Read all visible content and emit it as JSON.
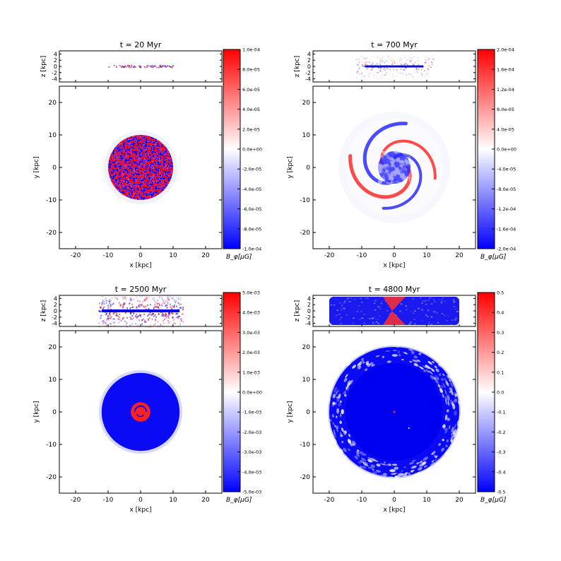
{
  "figure": {
    "panels": [
      {
        "title": "t = 20 Myr",
        "colorbar": {
          "label": "B_φ[μG]",
          "ticks": [
            "1.0e-04",
            "8.0e-05",
            "6.0e-05",
            "4.0e-05",
            "2.0e-05",
            "0.0e+00",
            "-2.0e-05",
            "-4.0e-05",
            "-6.0e-05",
            "-8.0e-05",
            "-1.0e-04"
          ]
        }
      },
      {
        "title": "t = 700 Myr",
        "colorbar": {
          "label": "B_φ[μG]",
          "ticks": [
            "2.0e-04",
            "1.6e-04",
            "1.2e-04",
            "8.0e-05",
            "4.0e-05",
            "0.0e+00",
            "-4.0e-05",
            "-8.0e-05",
            "-1.2e-04",
            "-1.6e-04",
            "-2.0e-04"
          ]
        }
      },
      {
        "title": "t = 2500 Myr",
        "colorbar": {
          "label": "B_φ[μG]",
          "ticks": [
            "5.0e-03",
            "4.0e-03",
            "3.0e-03",
            "2.0e-03",
            "1.0e-03",
            "0.0e+00",
            "-1.0e-03",
            "-2.0e-03",
            "-3.0e-03",
            "-4.0e-03",
            "-5.0e-03"
          ]
        }
      },
      {
        "title": "t = 4800 Myr",
        "colorbar": {
          "label": "B_φ[μG]",
          "ticks": [
            "0.5",
            "0.4",
            "0.3",
            "0.2",
            "0.1",
            "0.0",
            "-0.1",
            "-0.2",
            "-0.3",
            "-0.4",
            "-0.5"
          ]
        }
      }
    ],
    "axes": {
      "xlabel": "x [kpc]",
      "ylabel": "y [kpc]",
      "zlabel": "z [kpc]",
      "x_ticks": [
        "-20",
        "-10",
        "0",
        "10",
        "20"
      ],
      "y_ticks": [
        "20",
        "10",
        "0",
        "-10",
        "-20"
      ],
      "z_ticks": [
        "4",
        "2",
        "0",
        "-2",
        "-4"
      ]
    },
    "colors": {
      "positive": "#ff0000",
      "zero": "#ffffff",
      "negative": "#0000ff"
    }
  },
  "chart_data": [
    {
      "type": "heatmap",
      "title": "t = 20 Myr",
      "xlabel": "x [kpc]",
      "ylabel": "y [kpc]",
      "zlabel": "z [kpc]",
      "xlim": [
        -25,
        25
      ],
      "ylim": [
        -25,
        25
      ],
      "zlim": [
        -5,
        5
      ],
      "colorbar_label": "B_φ[μG]",
      "clim": [
        -0.0001,
        0.0001
      ],
      "colormap": "bwr",
      "structure": "turbulent disk of mixed red/blue fluctuations, radius ~10 kpc; thin edge-on layer |z|<0.5 kpc spanning x from -10 to 10 kpc"
    },
    {
      "type": "heatmap",
      "title": "t = 700 Myr",
      "xlabel": "x [kpc]",
      "ylabel": "y [kpc]",
      "zlabel": "z [kpc]",
      "xlim": [
        -25,
        25
      ],
      "ylim": [
        -25,
        25
      ],
      "zlim": [
        -5,
        5
      ],
      "colorbar_label": "B_φ[μG]",
      "clim": [
        -0.0002,
        0.0002
      ],
      "colormap": "bwr",
      "structure": "alternating red/blue spiral arms out to radius ~15 kpc with faint halo; edge-on layer spans x from -10 to 10 kpc"
    },
    {
      "type": "heatmap",
      "title": "t = 2500 Myr",
      "xlabel": "x [kpc]",
      "ylabel": "y [kpc]",
      "zlabel": "z [kpc]",
      "xlim": [
        -25,
        25
      ],
      "ylim": [
        -25,
        25
      ],
      "zlim": [
        -5,
        5
      ],
      "colorbar_label": "B_φ[μG]",
      "clim": [
        -0.005,
        0.005
      ],
      "colormap": "bwr",
      "structure": "uniform blue disk of radius ~12 kpc with small red spiral core of radius ~3 kpc; edge-on layer spans x from -12 to 12 kpc with vertical outflows"
    },
    {
      "type": "heatmap",
      "title": "t = 4800 Myr",
      "xlabel": "x [kpc]",
      "ylabel": "y [kpc]",
      "zlabel": "z [kpc]",
      "xlim": [
        -25,
        25
      ],
      "ylim": [
        -25,
        25
      ],
      "zlim": [
        -5,
        5
      ],
      "colorbar_label": "B_φ[μG]",
      "clim": [
        -0.5,
        0.5
      ],
      "colormap": "bwr",
      "structure": "saturated blue disk of radius ~20 kpc with turbulent ring between 15 and 21 kpc; tiny red spot near center; edge-on layer fills x from -20 to 20 kpc with red central outflow"
    }
  ]
}
